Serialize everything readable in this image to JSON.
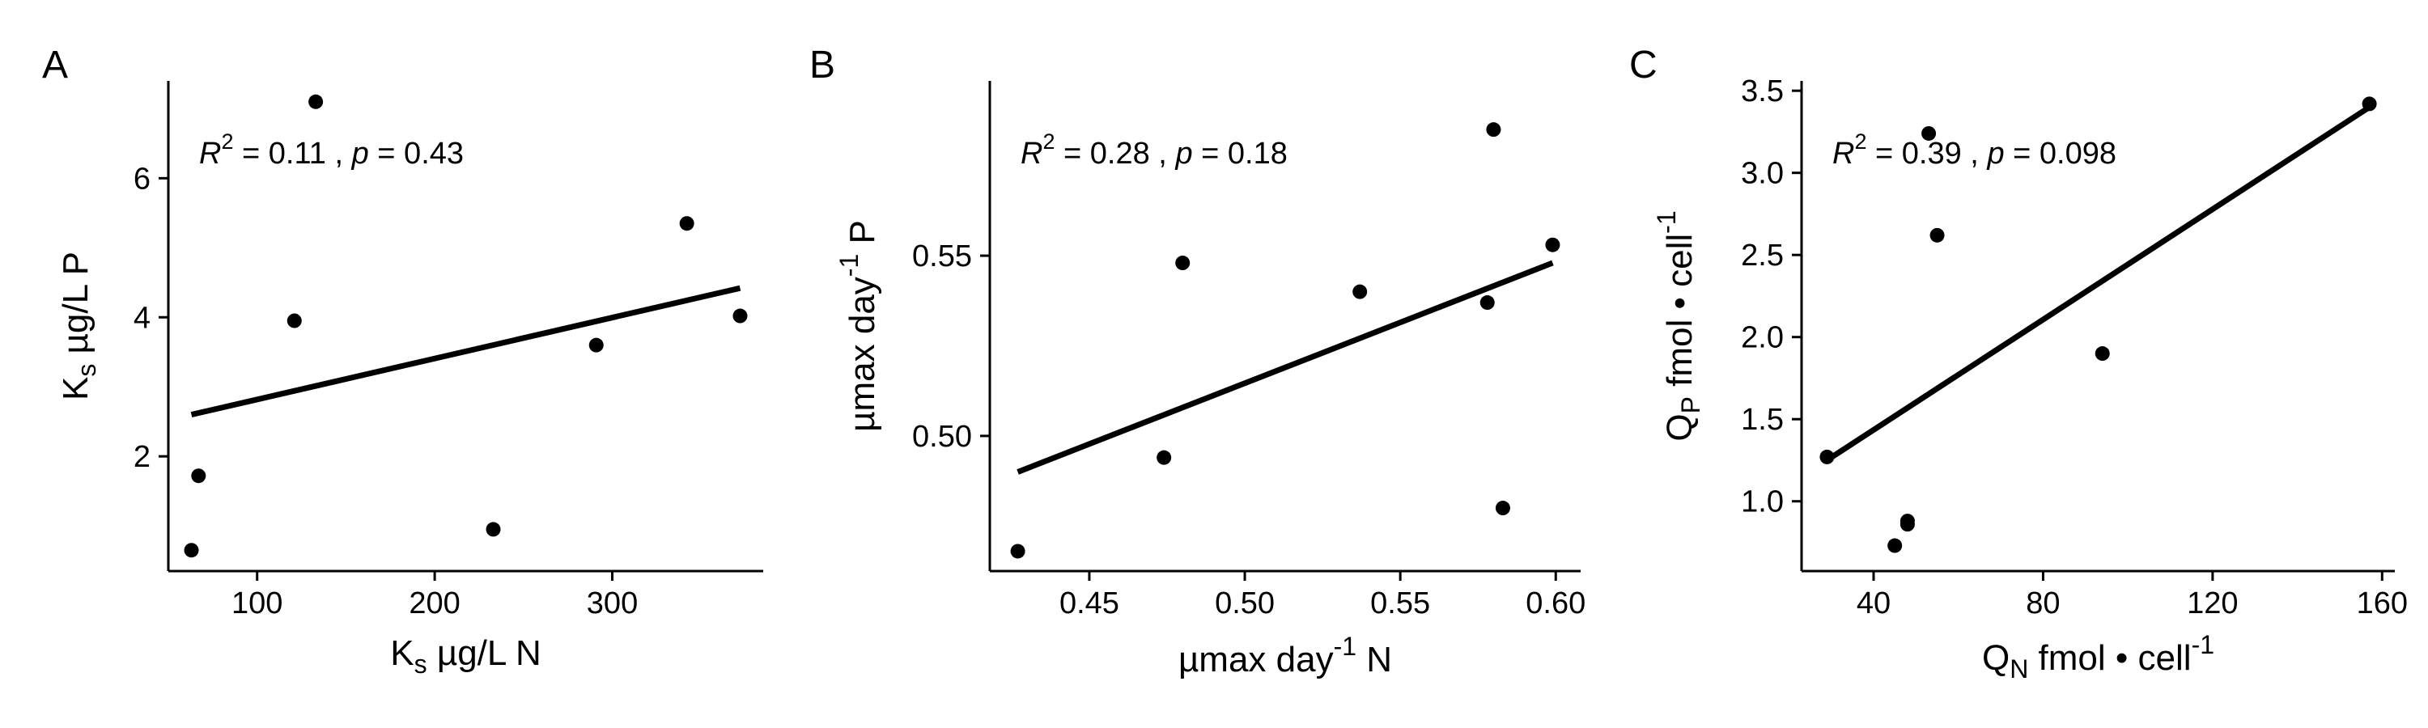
{
  "colors": {
    "ink": "#000000",
    "background": "#ffffff"
  },
  "chart_data": [
    {
      "type": "scatter",
      "panel_label": "A",
      "title": "",
      "xlabel": {
        "main": "K",
        "sub": "s",
        "sup": "",
        "rest": " µg/L N"
      },
      "ylabel": {
        "main": "K",
        "sub": "s",
        "sup": "",
        "rest": " µg/L P"
      },
      "xlim": [
        50,
        385
      ],
      "ylim": [
        0.35,
        7.4
      ],
      "xticks": [
        100,
        200,
        300
      ],
      "xtick_labels": [
        "100",
        "200",
        "300"
      ],
      "yticks": [
        2,
        4,
        6
      ],
      "ytick_labels": [
        "2",
        "4",
        "6"
      ],
      "points": [
        {
          "x": 63,
          "y": 0.65
        },
        {
          "x": 67,
          "y": 1.72
        },
        {
          "x": 121,
          "y": 3.95
        },
        {
          "x": 133,
          "y": 7.1
        },
        {
          "x": 233,
          "y": 0.95
        },
        {
          "x": 291,
          "y": 3.6
        },
        {
          "x": 342,
          "y": 5.35
        },
        {
          "x": 372,
          "y": 4.02
        }
      ],
      "fit_line": {
        "x": [
          63,
          372
        ],
        "y": [
          2.6,
          4.42
        ]
      },
      "annotation": {
        "r2_prefix": "R",
        "r2_sup": "2",
        "r2_value": " = 0.11 , ",
        "p_prefix": "p",
        "p_value": " = 0.43"
      },
      "grid": false
    },
    {
      "type": "scatter",
      "panel_label": "B",
      "title": "",
      "xlabel": {
        "main": "µmax day",
        "sub": "",
        "sup": "-1",
        "rest": " N"
      },
      "ylabel": {
        "main": "µmax day",
        "sub": "",
        "sup": "-1",
        "rest": " P"
      },
      "xlim": [
        0.418,
        0.608
      ],
      "ylim": [
        0.4625,
        0.5985
      ],
      "xticks": [
        0.45,
        0.5,
        0.55,
        0.6
      ],
      "xtick_labels": [
        "0.45",
        "0.50",
        "0.55",
        "0.60"
      ],
      "yticks": [
        0.5,
        0.55
      ],
      "ytick_labels": [
        "0.50",
        "0.55"
      ],
      "points": [
        {
          "x": 0.427,
          "y": 0.468
        },
        {
          "x": 0.474,
          "y": 0.494
        },
        {
          "x": 0.48,
          "y": 0.548
        },
        {
          "x": 0.537,
          "y": 0.54
        },
        {
          "x": 0.578,
          "y": 0.537
        },
        {
          "x": 0.58,
          "y": 0.585
        },
        {
          "x": 0.583,
          "y": 0.48
        },
        {
          "x": 0.599,
          "y": 0.553
        }
      ],
      "fit_line": {
        "x": [
          0.427,
          0.599
        ],
        "y": [
          0.49,
          0.548
        ]
      },
      "annotation": {
        "r2_prefix": "R",
        "r2_sup": "2",
        "r2_value": " = 0.28 , ",
        "p_prefix": "p",
        "p_value": " = 0.18"
      },
      "grid": false
    },
    {
      "type": "scatter",
      "panel_label": "C",
      "title": "",
      "xlabel": {
        "main": "Q",
        "sub": "N",
        "sup": "",
        "rest": " fmol • cell",
        "sup2": "-1"
      },
      "ylabel": {
        "main": "Q",
        "sub": "P",
        "sup": "",
        "rest": " fmol • cell",
        "sup2": "-1"
      },
      "xlim": [
        23,
        163
      ],
      "ylim": [
        0.575,
        3.56
      ],
      "xticks": [
        40,
        80,
        120,
        160
      ],
      "xtick_labels": [
        "40",
        "80",
        "120",
        "160"
      ],
      "yticks": [
        1.0,
        1.5,
        2.0,
        2.5,
        3.0,
        3.5
      ],
      "ytick_labels": [
        "1.0",
        "1.5",
        "2.0",
        "2.5",
        "3.0",
        "3.5"
      ],
      "points": [
        {
          "x": 29,
          "y": 1.27
        },
        {
          "x": 45,
          "y": 0.73
        },
        {
          "x": 48,
          "y": 0.86
        },
        {
          "x": 48,
          "y": 0.88
        },
        {
          "x": 53,
          "y": 3.24
        },
        {
          "x": 55,
          "y": 2.62
        },
        {
          "x": 94,
          "y": 1.9
        },
        {
          "x": 157,
          "y": 3.42
        }
      ],
      "fit_line": {
        "x": [
          29,
          157
        ],
        "y": [
          1.25,
          3.4
        ]
      },
      "annotation": {
        "r2_prefix": "R",
        "r2_sup": "2",
        "r2_value": " = 0.39 , ",
        "p_prefix": "p",
        "p_value": " = 0.098"
      },
      "grid": false
    }
  ]
}
